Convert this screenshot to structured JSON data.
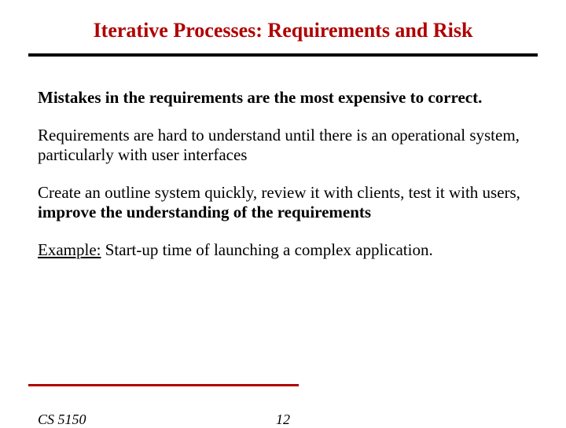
{
  "title": "Iterative Processes: Requirements and Risk",
  "colors": {
    "title_color": "#b00000",
    "rule_top_color": "#000000",
    "rule_bottom_color": "#b00000",
    "text_color": "#000000",
    "background": "#ffffff"
  },
  "typography": {
    "title_fontsize": 26,
    "body_fontsize": 21,
    "footer_fontsize": 18,
    "font_family": "Times New Roman"
  },
  "paragraphs": {
    "p1": "Mistakes in the requirements are the most expensive to correct.",
    "p2": "Requirements are hard to understand until there is an operational system, particularly with user interfaces",
    "p3_a": "Create an outline system quickly, review it with clients, test it with users, ",
    "p3_b": "improve the understanding of the requirements",
    "p4_label": "Example:",
    "p4_text": "  Start-up time of launching a complex application."
  },
  "footer": {
    "course": "CS 5150",
    "page": "12"
  }
}
